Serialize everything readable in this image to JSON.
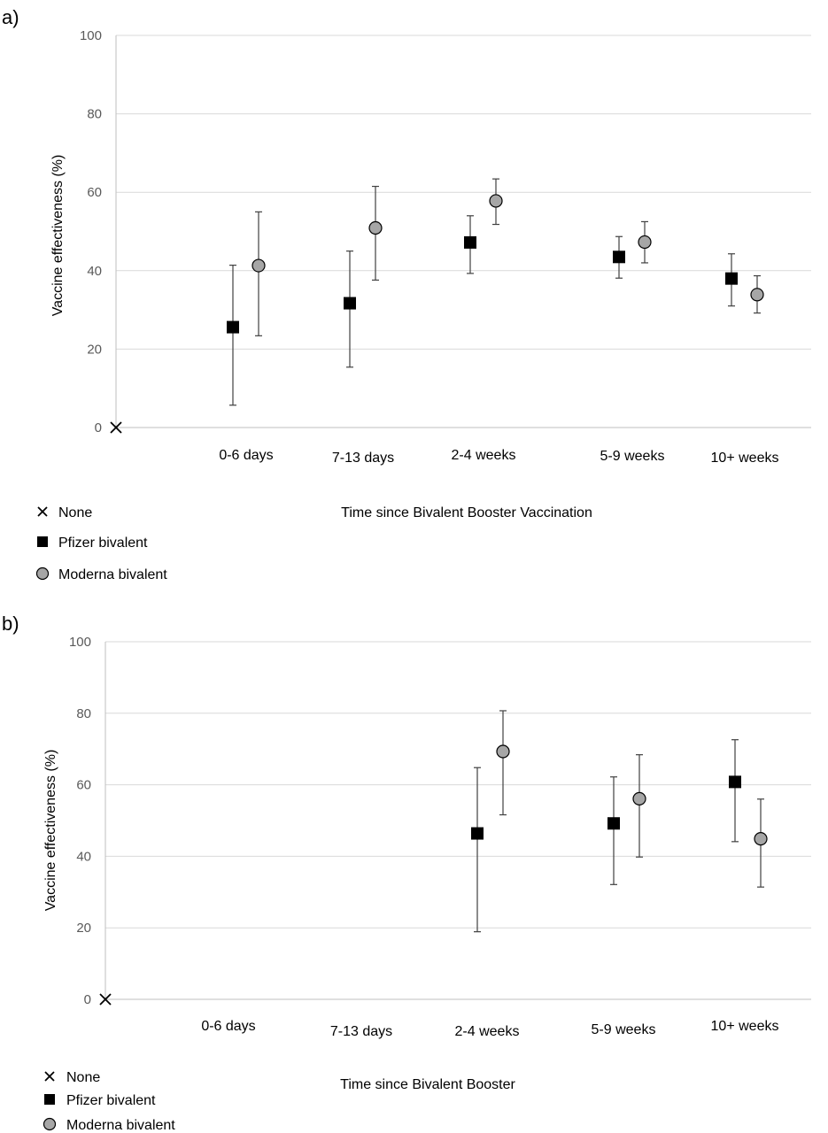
{
  "chart_data": [
    {
      "panel_label": "a)",
      "type": "scatter",
      "xlabel": "Time since Bivalent Booster Vaccination",
      "ylabel": "Vaccine effectiveness (%)",
      "ylim": [
        0,
        100
      ],
      "yticks": [
        0,
        20,
        40,
        60,
        80,
        100
      ],
      "grid": true,
      "categories": [
        "0-6 days",
        "7-13 days",
        "2-4 weeks",
        "5-9 weeks",
        "10+ weeks"
      ],
      "legend": {
        "position": "bottom-left",
        "items": [
          {
            "label": "None",
            "marker": "x",
            "color": "#000000"
          },
          {
            "label": "Pfizer bivalent",
            "marker": "square",
            "color": "#000000"
          },
          {
            "label": "Moderna bivalent",
            "marker": "circle",
            "color": "#a6a6a6"
          }
        ]
      },
      "series": [
        {
          "name": "None",
          "marker": "x",
          "values": [
            null,
            null,
            null,
            null,
            null
          ]
        },
        {
          "name": "Pfizer bivalent",
          "marker": "square",
          "color": "#000000",
          "values": [
            25.6,
            31.7,
            47.2,
            43.5,
            38.0
          ],
          "lower": [
            5.7,
            15.4,
            39.3,
            38.1,
            31.0
          ],
          "upper": [
            41.4,
            45.0,
            54.0,
            48.7,
            44.3
          ]
        },
        {
          "name": "Moderna bivalent",
          "marker": "circle",
          "color": "#a6a6a6",
          "values": [
            41.3,
            50.9,
            57.8,
            47.3,
            33.9
          ],
          "lower": [
            23.4,
            37.6,
            51.8,
            42.0,
            29.2
          ],
          "upper": [
            55.0,
            61.5,
            63.4,
            52.5,
            38.7
          ]
        }
      ]
    },
    {
      "panel_label": "b)",
      "type": "scatter",
      "xlabel": "Time since Bivalent Booster",
      "ylabel": "Vaccine effectiveness (%)",
      "ylim": [
        0,
        100
      ],
      "yticks": [
        0,
        20,
        40,
        60,
        80,
        100
      ],
      "grid": true,
      "categories": [
        "0-6 days",
        "7-13 days",
        "2-4 weeks",
        "5-9 weeks",
        "10+ weeks"
      ],
      "legend": {
        "position": "bottom-left",
        "items": [
          {
            "label": "None",
            "marker": "x",
            "color": "#000000"
          },
          {
            "label": "Pfizer bivalent",
            "marker": "square",
            "color": "#000000"
          },
          {
            "label": "Moderna bivalent",
            "marker": "circle",
            "color": "#a6a6a6"
          }
        ]
      },
      "series": [
        {
          "name": "None",
          "marker": "x",
          "values": [
            null,
            null,
            null,
            null,
            null
          ]
        },
        {
          "name": "Pfizer bivalent",
          "marker": "square",
          "color": "#000000",
          "values": [
            null,
            null,
            46.4,
            49.2,
            60.8
          ],
          "lower": [
            null,
            null,
            18.9,
            32.1,
            44.1
          ],
          "upper": [
            null,
            null,
            64.8,
            62.2,
            72.6
          ]
        },
        {
          "name": "Moderna bivalent",
          "marker": "circle",
          "color": "#a6a6a6",
          "values": [
            null,
            null,
            69.3,
            56.1,
            44.9
          ],
          "lower": [
            null,
            null,
            51.6,
            39.8,
            31.4
          ],
          "upper": [
            null,
            null,
            80.7,
            68.4,
            56.0
          ]
        }
      ]
    }
  ]
}
